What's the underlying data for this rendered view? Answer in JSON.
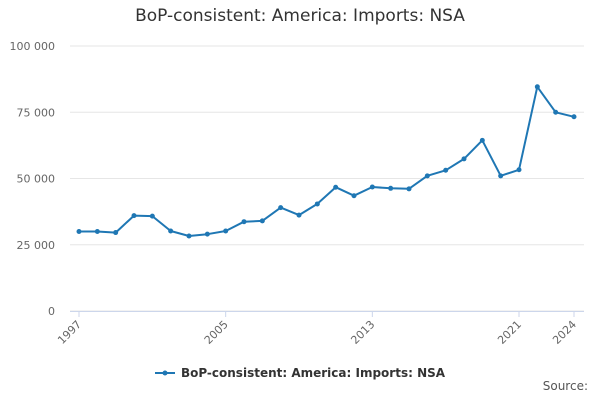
{
  "title": "BoP-consistent: America: Imports: NSA",
  "source_label": "Source:",
  "legend_label": "BoP-consistent: America: Imports: NSA",
  "colors": {
    "series": "#1f77b4",
    "grid": "#e6e6e6",
    "axis": "#ccd6eb"
  },
  "chart_data": {
    "type": "line",
    "title": "BoP-consistent: America: Imports: NSA",
    "xlabel": "",
    "ylabel": "",
    "ylim": [
      0,
      100000
    ],
    "xlim": [
      1997,
      2024
    ],
    "grid": true,
    "legend_position": "bottom",
    "x_ticks": [
      1997,
      2005,
      2013,
      2021,
      2024
    ],
    "y_ticks": [
      {
        "value": 0,
        "label": "0"
      },
      {
        "value": 25000,
        "label": "25 000"
      },
      {
        "value": 50000,
        "label": "50 000"
      },
      {
        "value": 75000,
        "label": "75 000"
      },
      {
        "value": 100000,
        "label": "100 000"
      }
    ],
    "series": [
      {
        "name": "BoP-consistent: America: Imports: NSA",
        "x": [
          1997,
          1998,
          1999,
          2000,
          2001,
          2002,
          2003,
          2004,
          2005,
          2006,
          2007,
          2008,
          2009,
          2010,
          2011,
          2012,
          2013,
          2014,
          2015,
          2016,
          2017,
          2018,
          2019,
          2020,
          2021,
          2022,
          2023,
          2024
        ],
        "values": [
          30000,
          30000,
          29600,
          36000,
          35800,
          30200,
          28300,
          29000,
          30200,
          33700,
          34000,
          39000,
          36200,
          40400,
          46700,
          43500,
          46800,
          46300,
          46100,
          51000,
          53100,
          57400,
          64400,
          51000,
          53300,
          84600,
          75000,
          73300
        ]
      }
    ]
  }
}
